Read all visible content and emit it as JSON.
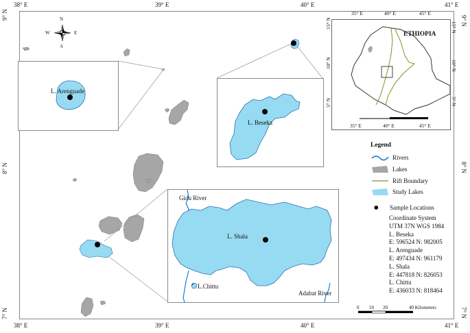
{
  "graticule": {
    "top_lon": [
      "38° E",
      "39° E",
      "40° E",
      "41° E"
    ],
    "bottom_lon": [
      "38° E",
      "39° E",
      "40° E",
      "41° E"
    ],
    "left_lat": [
      "9° N",
      "8° N",
      "7° N"
    ],
    "right_lat": [
      "9° N",
      "8° N",
      "7° N"
    ]
  },
  "compass": {
    "n": "N",
    "s": "S",
    "e": "E",
    "w": "W"
  },
  "insets": {
    "arenguade": "L. Arenguade",
    "beseka": "L. Beseka",
    "shala": "L. Shala",
    "chittu": "L.Chittu",
    "gidu_river": "Gidu River",
    "adabat_river": "Adabat River"
  },
  "ethiopia_inset": {
    "title": "ETHIOPIA",
    "top_lon": [
      "35° E",
      "40° E",
      "45° E"
    ],
    "bottom_lon": [
      "35° E",
      "40° E",
      "45° E"
    ],
    "left_lat": [
      "15° N",
      "10° N",
      "5° N"
    ],
    "right_lat": [
      "15° N",
      "10° N",
      "5° N"
    ]
  },
  "legend": {
    "title": "Legend",
    "items": [
      {
        "label": "Rivers",
        "symbol": "river"
      },
      {
        "label": "Lakes",
        "symbol": "lake"
      },
      {
        "label": "Rift Boundary",
        "symbol": "rift"
      },
      {
        "label": "Study Lakes",
        "symbol": "study"
      },
      {
        "label": "Sample Locations",
        "symbol": "point"
      }
    ]
  },
  "info": {
    "coord_title": "Coordinate System",
    "coord_value": "UTM 37N WGS 1984",
    "beseka_name": "L. Beseka",
    "beseka_coords": "E: 596524 N: 982005",
    "arenguade_name": "L. Arenguade",
    "arenguade_coords": "E: 497434 N: 961179",
    "shala_name": "L. Shala",
    "shala_coords": "E: 447818 N: 826053",
    "chittu_name": "L. Chittu",
    "chittu_coords": "E: 436033 N: 818464"
  },
  "scale": {
    "ticks": [
      "0",
      "10",
      "20",
      "40 Kilometers"
    ]
  },
  "colors": {
    "lake_gray": "#a6a6a6",
    "study_blue": "#97dbf2",
    "river_blue": "#1f7fd6",
    "rift_olive": "#8c8c2a",
    "frame_gray": "#888888"
  }
}
